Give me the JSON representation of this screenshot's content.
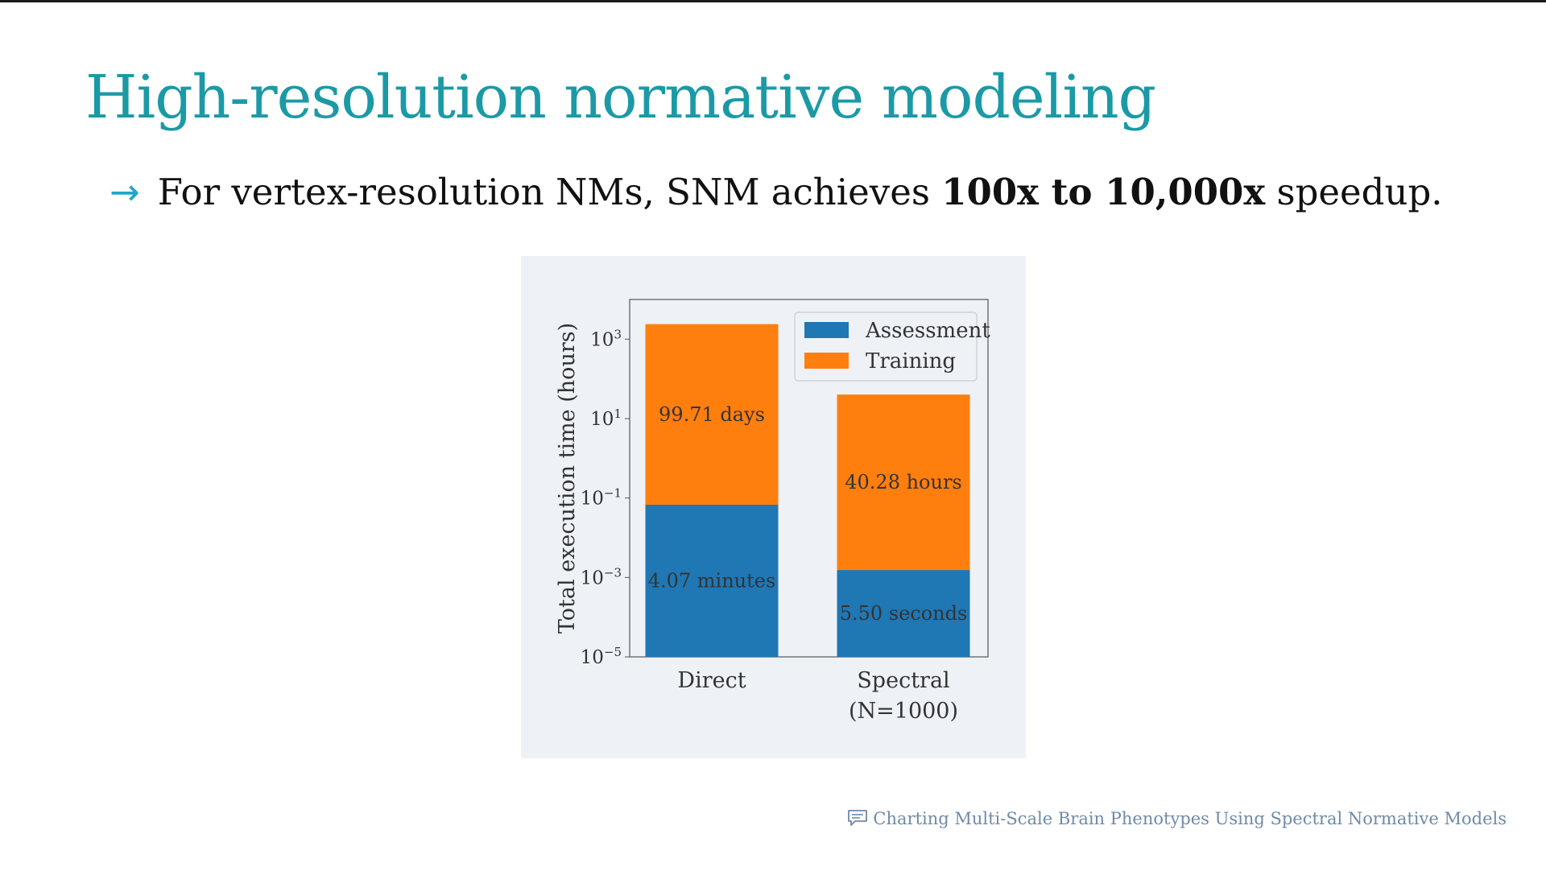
{
  "slide": {
    "title": "High-resolution normative modeling",
    "bullet": {
      "arrow": "→",
      "pre": "For vertex-resolution NMs, SNM achieves ",
      "bold": "100x to 10,000x",
      "post": " speedup."
    },
    "footer": {
      "icon": "comment-icon",
      "text": "Charting Multi-Scale Brain Phenotypes Using Spectral Normative Models"
    }
  },
  "chart_data": {
    "type": "bar",
    "stacked": true,
    "yscale": "log",
    "ylabel": "Total execution time (hours)",
    "ylim": [
      1e-05,
      10000
    ],
    "yticks": [
      {
        "value": 1000,
        "base": "10",
        "exp": "3"
      },
      {
        "value": 10,
        "base": "10",
        "exp": "1"
      },
      {
        "value": 0.1,
        "base": "10",
        "exp": "−1"
      },
      {
        "value": 0.001,
        "base": "10",
        "exp": "−3"
      },
      {
        "value": 1e-05,
        "base": "10",
        "exp": "−5"
      }
    ],
    "categories": [
      {
        "lines": [
          "Direct"
        ]
      },
      {
        "lines": [
          "Spectral",
          "(N=1000)"
        ]
      }
    ],
    "series": [
      {
        "name": "Assessment",
        "color": "#1f77b4",
        "values": [
          0.0678,
          0.00153
        ],
        "labels": [
          "4.07 minutes",
          "5.50 seconds"
        ]
      },
      {
        "name": "Training",
        "color": "#ff7f0e",
        "values": [
          2393.04,
          40.28
        ],
        "labels": [
          "99.71 days",
          "40.28 hours"
        ]
      }
    ],
    "legend": {
      "position": "top-right"
    },
    "grid": false
  }
}
